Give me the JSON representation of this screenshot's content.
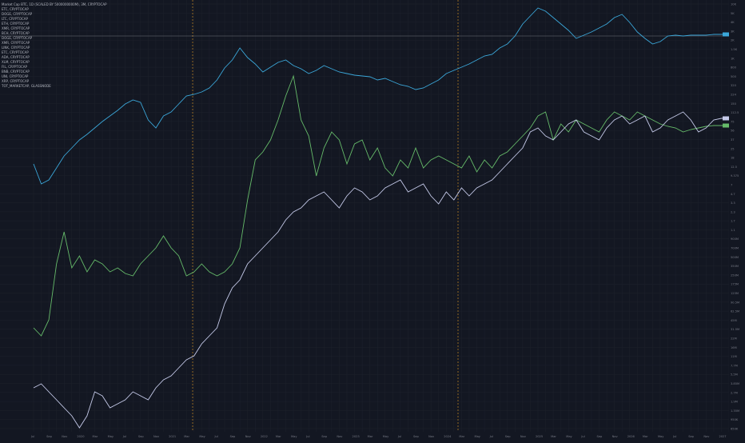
{
  "legend": {
    "title": "Market Cap BTC, 1D (SCALED BY 5000000000M), 3M, CRYPTOCAP",
    "items": [
      "ETC, CRYPTOCAP",
      "DOGE, CRYPTOCAP",
      "LTC, CRYPTOCAP",
      "ETH, CRYPTOCAP",
      "XMR, CRYPTOCAP",
      "BCH, CRYPTOCAP",
      "DOGE, CRYPTOCAP",
      "XMR, CRYPTOCAP",
      "LINK, CRYPTOCAP",
      "ETC, CRYPTOCAP",
      "ADA, CRYPTOCAP",
      "XLM, CRYPTOCAP",
      "FIL, CRYPTOCAP",
      "BNB, CRYPTOCAP",
      "UNI, CRYPTOCAP",
      "XRP, CRYPTOCAP",
      "TOT_MARKETCAP, GLASSNODE"
    ]
  },
  "chart_data": {
    "type": "line",
    "yscale": "log",
    "x": [
      0,
      1,
      2,
      3,
      4,
      5,
      6,
      7,
      8,
      9,
      10,
      11,
      12,
      13,
      14,
      15,
      16,
      17,
      18,
      19,
      20,
      21,
      22,
      23,
      24,
      25,
      26,
      27,
      28,
      29,
      30,
      31,
      32,
      33,
      34,
      35,
      36,
      37,
      38,
      39,
      40,
      41,
      42,
      43,
      44,
      45,
      46,
      47,
      48,
      49,
      50,
      51,
      52,
      53,
      54,
      55,
      56,
      57,
      58,
      59,
      60,
      61,
      62,
      63,
      64,
      65,
      66,
      67,
      68,
      69,
      70,
      71,
      72,
      73,
      74,
      75,
      76,
      77,
      78,
      79,
      80,
      81,
      82,
      83,
      84,
      85,
      86,
      87,
      88,
      89,
      90,
      91
    ],
    "x_tick_labels": [
      "Jul",
      "Aug",
      "Sep",
      "Oct",
      "Nov",
      "Dec",
      "2020",
      "Feb",
      "Mar",
      "Apr",
      "May",
      "Jun",
      "Jul",
      "Aug",
      "Sep",
      "Oct",
      "Nov",
      "Dec",
      "2021",
      "Feb",
      "Mar",
      "Apr",
      "May",
      "Jun",
      "Jul",
      "Aug",
      "Sep",
      "Oct",
      "Nov",
      "Dec",
      "2022",
      "Feb",
      "Mar",
      "Apr",
      "May",
      "Jun",
      "Jul",
      "Aug",
      "Sep",
      "Oct",
      "Nov",
      "Dec",
      "2023",
      "Feb",
      "Mar",
      "Apr",
      "May",
      "Jun",
      "Jul",
      "Aug",
      "Sep",
      "Oct",
      "Nov",
      "Dec",
      "2024",
      "Feb",
      "Mar",
      "Apr",
      "May",
      "Jun",
      "Jul",
      "Aug",
      "Sep",
      "Oct",
      "Nov",
      "Dec",
      "2025",
      "Feb",
      "Mar",
      "Apr",
      "May",
      "Jun",
      "Jul",
      "Aug",
      "Sep",
      "Oct",
      "Nov",
      "Dec",
      "2026",
      "Feb",
      "Mar",
      "Apr",
      "May",
      "Jun",
      "Jul",
      "Aug",
      "Sep",
      "Oct",
      "Nov",
      "Dec",
      "2027",
      "Feb"
    ],
    "y_tick_labels": [
      "10K",
      "5K",
      "4K",
      "3K",
      "2K",
      "1.5K",
      "1K",
      "800",
      "500",
      "320",
      "224",
      "150",
      "112.5",
      "75",
      "56",
      "37",
      "25",
      "18",
      "12.5",
      "9.375",
      "7",
      "4.7",
      "3.3",
      "2.3",
      "1.7",
      "1.1",
      "900M",
      "700M",
      "500M",
      "350M",
      "250M",
      "175M",
      "125M",
      "90.5M",
      "62.5M",
      "45M",
      "31.5M",
      "22M",
      "16M",
      "11M",
      "7.7M",
      "5.5M",
      "3.85M",
      "2.7M",
      "1.9M",
      "1.35M",
      "950K",
      "650K"
    ],
    "series": [
      {
        "color": "#3ba7d9",
        "values": [
          205,
          230,
          225,
          210,
          195,
          185,
          175,
          168,
          160,
          152,
          145,
          138,
          130,
          125,
          128,
          150,
          160,
          145,
          140,
          130,
          120,
          118,
          115,
          110,
          100,
          85,
          75,
          60,
          72,
          80,
          90,
          84,
          78,
          75,
          82,
          86,
          92,
          88,
          82,
          86,
          90,
          92,
          94,
          95,
          96,
          100,
          98,
          102,
          106,
          108,
          112,
          110,
          105,
          100,
          92,
          88,
          84,
          80,
          75,
          70,
          68,
          60,
          55,
          45,
          30,
          20,
          10,
          14,
          22,
          30,
          38,
          48,
          44,
          40,
          35,
          30,
          22,
          18,
          28,
          40,
          48,
          55,
          52,
          45,
          44,
          45,
          44,
          44,
          44,
          43,
          43,
          43
        ]
      },
      {
        "color": "#7e57c2",
        "values": [
          null,
          null,
          null,
          null,
          null,
          null,
          null,
          null,
          null,
          null,
          null,
          null,
          null,
          null,
          null,
          null,
          null,
          null,
          null,
          null,
          null,
          null,
          null,
          null,
          null,
          null,
          null,
          null,
          null,
          null,
          null,
          null,
          null,
          null,
          null,
          null,
          null,
          null,
          null,
          null,
          null,
          null,
          null,
          null,
          null,
          null,
          null,
          null,
          null,
          null,
          null,
          null,
          null,
          null,
          null,
          null,
          null,
          null,
          null,
          null,
          null,
          null,
          null,
          null,
          null,
          null,
          null,
          null,
          null,
          null,
          null,
          null,
          null,
          null,
          null,
          null,
          null,
          null,
          null,
          null,
          null,
          null,
          null,
          null,
          null,
          null,
          null,
          null,
          null,
          null,
          null,
          null
        ]
      },
      {
        "color": "#66bb6a",
        "values": [
          410,
          420,
          400,
          330,
          290,
          335,
          320,
          340,
          325,
          330,
          340,
          335,
          342,
          345,
          330,
          320,
          310,
          295,
          310,
          320,
          345,
          340,
          330,
          340,
          345,
          340,
          330,
          310,
          250,
          200,
          190,
          175,
          150,
          120,
          95,
          150,
          170,
          220,
          185,
          165,
          175,
          205,
          180,
          175,
          200,
          185,
          210,
          220,
          200,
          210,
          185,
          210,
          200,
          195,
          200,
          205,
          210,
          195,
          215,
          200,
          210,
          195,
          190,
          180,
          170,
          160,
          145,
          140,
          175,
          155,
          165,
          150,
          155,
          160,
          165,
          150,
          140,
          145,
          150,
          140,
          145,
          150,
          155,
          158,
          160,
          165,
          162,
          160,
          158,
          157,
          157,
          157
        ]
      },
      {
        "color": "#9598a1",
        "values": [
          null,
          null,
          null,
          null,
          null,
          null,
          null,
          null,
          null,
          null,
          null,
          null,
          null,
          null,
          null,
          null,
          null,
          null,
          null,
          null,
          null,
          null,
          null,
          null,
          null,
          null,
          null,
          null,
          null,
          null,
          null,
          null,
          null,
          null,
          null,
          null,
          null,
          null,
          null,
          null,
          null,
          null,
          null,
          null,
          null,
          null,
          null,
          null,
          null,
          null,
          null,
          null,
          null,
          null,
          null,
          null,
          null,
          null,
          null,
          null,
          null,
          null,
          null,
          null,
          null,
          null,
          null,
          null,
          null,
          null,
          null,
          null,
          null,
          null,
          null,
          null,
          null,
          null,
          null,
          null,
          null,
          null,
          null,
          null,
          null,
          null,
          null,
          null,
          null,
          null,
          null,
          null
        ]
      },
      {
        "color": "#f5a623",
        "values": [
          null,
          null,
          null,
          null,
          null,
          null,
          null,
          null,
          null,
          null,
          null,
          null,
          null,
          null,
          null,
          null,
          null,
          null,
          null,
          null,
          null,
          null,
          null,
          null,
          null,
          null,
          null,
          null,
          null,
          null,
          null,
          null,
          null,
          null,
          null,
          null,
          null,
          null,
          null,
          null,
          null,
          null,
          null,
          null,
          null,
          null,
          null,
          null,
          null,
          null,
          null,
          null,
          null,
          null,
          null,
          null,
          null,
          null,
          null,
          null,
          null,
          null,
          null,
          null,
          null,
          null,
          null,
          null,
          null,
          null,
          null,
          null,
          null,
          null,
          null,
          null,
          null,
          null,
          null,
          null,
          null,
          null,
          null,
          null,
          null,
          null,
          null,
          null,
          null,
          null,
          null,
          null
        ]
      },
      {
        "color": "#26c6da",
        "values": [
          null,
          null,
          null,
          null,
          null,
          null,
          null,
          null,
          null,
          null,
          null,
          null,
          null,
          null,
          null,
          null,
          null,
          null,
          null,
          null,
          null,
          null,
          null,
          null,
          null,
          null,
          null,
          null,
          null,
          null,
          null,
          null,
          null,
          null,
          null,
          null,
          null,
          null,
          null,
          null,
          null,
          null,
          null,
          null,
          null,
          null,
          null,
          null,
          null,
          null,
          null,
          null,
          null,
          null,
          null,
          null,
          null,
          null,
          null,
          null,
          null,
          null,
          null,
          null,
          null,
          null,
          null,
          null,
          null,
          null,
          null,
          null,
          null,
          null,
          null,
          null,
          null,
          null,
          null,
          null,
          null,
          null,
          null,
          null,
          null,
          null,
          null,
          null,
          null,
          null,
          null,
          null
        ]
      },
      {
        "color": "#ec407a",
        "values": [
          null,
          null,
          null,
          null,
          null,
          null,
          null,
          null,
          null,
          null,
          null,
          null,
          null,
          null,
          null,
          null,
          null,
          null,
          null,
          null,
          null,
          null,
          null,
          null,
          null,
          null,
          null,
          null,
          null,
          null,
          null,
          null,
          null,
          null,
          null,
          null,
          null,
          null,
          null,
          null,
          null,
          null,
          null,
          null,
          null,
          null,
          null,
          null,
          null,
          null,
          null,
          null,
          null,
          null,
          null,
          null,
          null,
          null,
          null,
          null,
          null,
          null,
          null,
          null,
          null,
          null,
          null,
          null,
          null,
          null,
          null,
          null,
          null,
          null,
          null,
          null,
          null,
          null,
          null,
          null,
          null,
          null,
          null,
          null,
          null,
          null,
          null,
          null,
          null,
          null,
          null,
          null
        ]
      },
      {
        "color": "#c5cae9",
        "values": [
          485,
          480,
          490,
          500,
          510,
          520,
          535,
          520,
          490,
          495,
          510,
          505,
          500,
          490,
          495,
          500,
          485,
          475,
          470,
          460,
          450,
          445,
          430,
          420,
          410,
          380,
          360,
          350,
          330,
          320,
          310,
          300,
          290,
          275,
          265,
          260,
          250,
          245,
          240,
          250,
          260,
          245,
          235,
          240,
          250,
          245,
          235,
          230,
          225,
          240,
          235,
          230,
          245,
          255,
          240,
          250,
          235,
          245,
          235,
          230,
          225,
          215,
          205,
          195,
          185,
          165,
          160,
          170,
          175,
          165,
          155,
          150,
          165,
          170,
          175,
          160,
          150,
          145,
          155,
          150,
          145,
          165,
          160,
          150,
          145,
          140,
          150,
          165,
          160,
          150,
          148,
          148
        ]
      },
      {
        "color": "#ffb74d",
        "values": [
          null,
          null,
          null,
          null,
          null,
          null,
          null,
          null,
          null,
          null,
          null,
          null,
          null,
          null,
          null,
          null,
          null,
          null,
          null,
          null,
          null,
          null,
          null,
          null,
          null,
          null,
          null,
          null,
          null,
          null,
          null,
          null,
          null,
          null,
          null,
          null,
          null,
          null,
          null,
          null,
          null,
          null,
          null,
          null,
          null,
          null,
          null,
          null,
          null,
          null,
          null,
          null,
          null,
          null,
          null,
          null,
          null,
          null,
          null,
          null,
          null,
          null,
          null,
          null,
          null,
          null,
          null,
          null,
          null,
          null,
          null,
          null,
          null,
          null,
          null,
          null,
          null,
          null,
          null,
          null,
          null,
          null,
          null,
          null,
          null,
          null,
          null,
          null,
          null,
          null,
          null,
          null
        ]
      }
    ]
  }
}
